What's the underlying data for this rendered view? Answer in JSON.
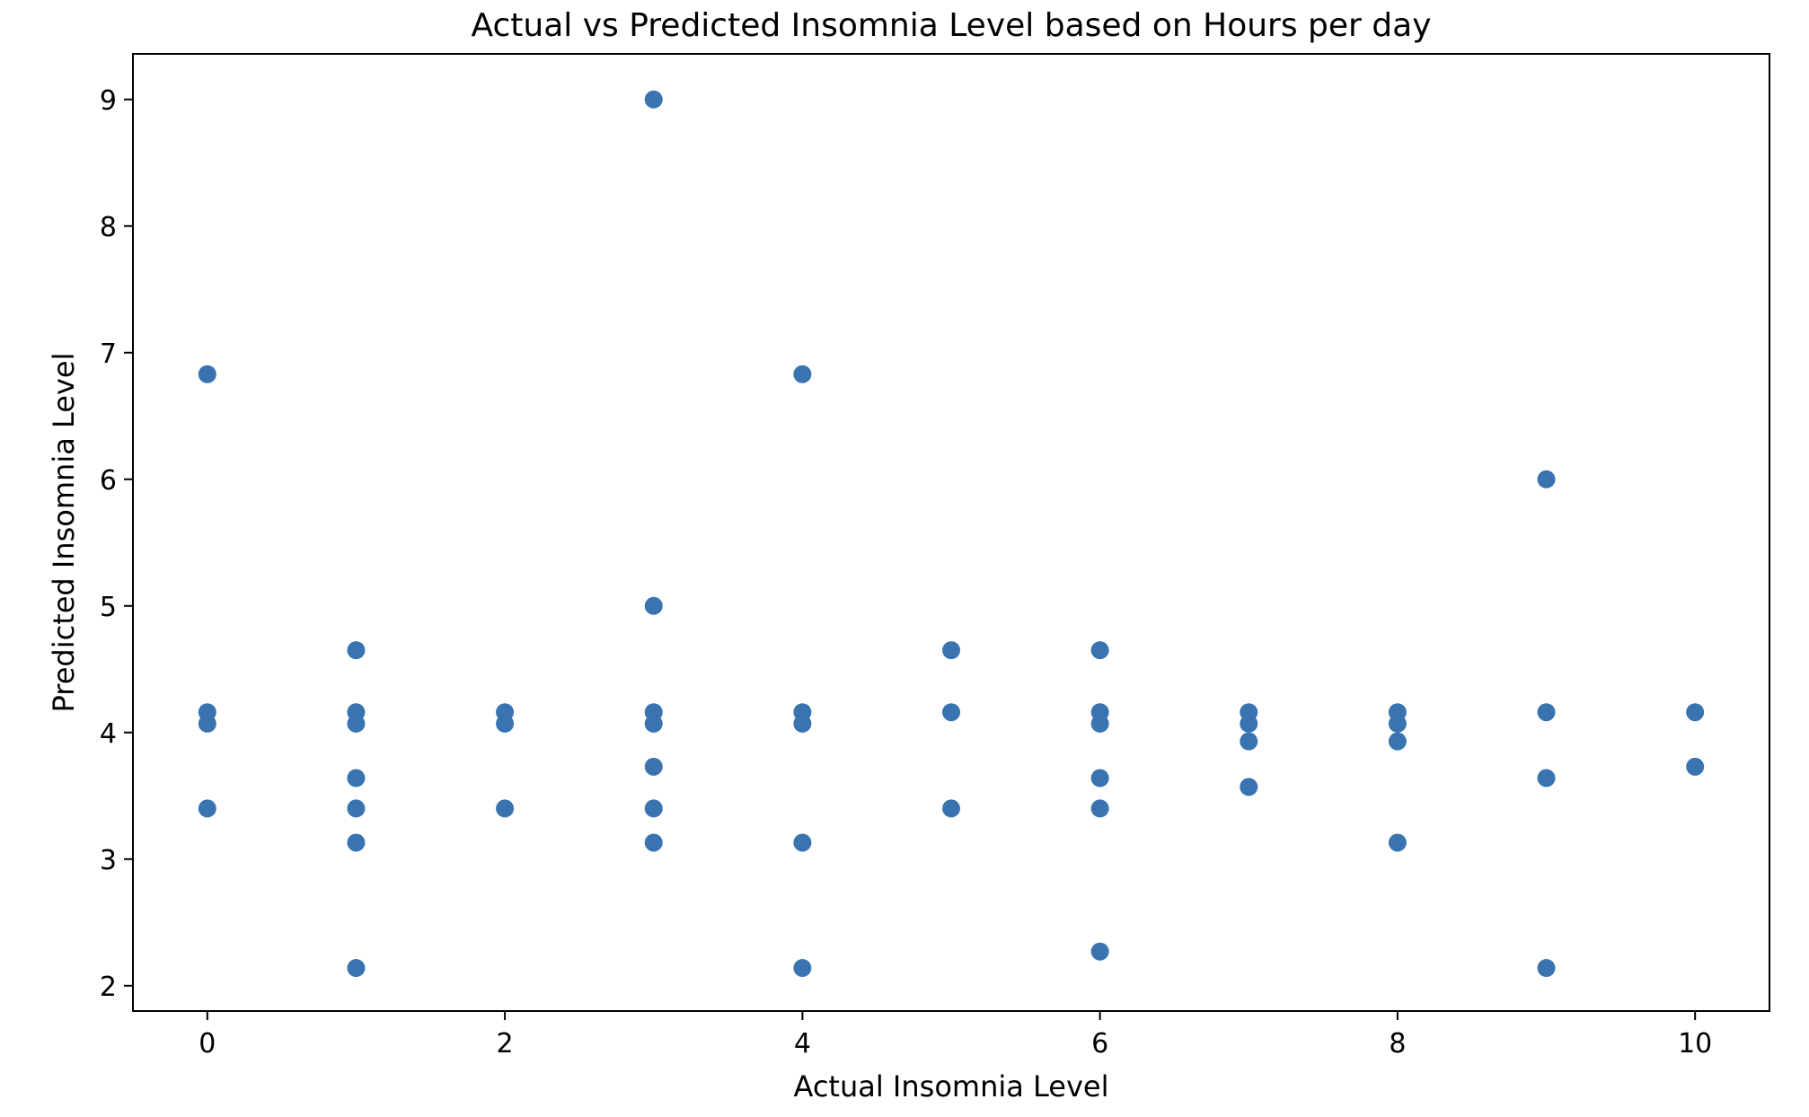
{
  "chart_data": {
    "type": "scatter",
    "title": "Actual vs Predicted Insomnia Level based on Hours per day",
    "xlabel": "Actual Insomnia Level",
    "ylabel": "Predicted Insomnia Level",
    "xlim": [
      -0.5,
      10.5
    ],
    "ylim": [
      1.8,
      9.36
    ],
    "xticks": [
      0,
      2,
      4,
      6,
      8,
      10
    ],
    "yticks": [
      2,
      3,
      4,
      5,
      6,
      7,
      8,
      9
    ],
    "grid": false,
    "marker_color": "#3a74b0",
    "points": [
      {
        "x": 0,
        "y": 6.83
      },
      {
        "x": 0,
        "y": 4.16
      },
      {
        "x": 0,
        "y": 4.07
      },
      {
        "x": 0,
        "y": 3.4
      },
      {
        "x": 1,
        "y": 4.65
      },
      {
        "x": 1,
        "y": 4.16
      },
      {
        "x": 1,
        "y": 4.07
      },
      {
        "x": 1,
        "y": 3.64
      },
      {
        "x": 1,
        "y": 3.4
      },
      {
        "x": 1,
        "y": 3.13
      },
      {
        "x": 1,
        "y": 2.14
      },
      {
        "x": 2,
        "y": 4.16
      },
      {
        "x": 2,
        "y": 4.07
      },
      {
        "x": 2,
        "y": 3.4
      },
      {
        "x": 3,
        "y": 9.0
      },
      {
        "x": 3,
        "y": 5.0
      },
      {
        "x": 3,
        "y": 4.16
      },
      {
        "x": 3,
        "y": 4.07
      },
      {
        "x": 3,
        "y": 3.73
      },
      {
        "x": 3,
        "y": 3.4
      },
      {
        "x": 3,
        "y": 3.13
      },
      {
        "x": 4,
        "y": 6.83
      },
      {
        "x": 4,
        "y": 4.16
      },
      {
        "x": 4,
        "y": 4.07
      },
      {
        "x": 4,
        "y": 3.13
      },
      {
        "x": 4,
        "y": 2.14
      },
      {
        "x": 5,
        "y": 4.65
      },
      {
        "x": 5,
        "y": 4.16
      },
      {
        "x": 5,
        "y": 3.4
      },
      {
        "x": 6,
        "y": 4.65
      },
      {
        "x": 6,
        "y": 4.16
      },
      {
        "x": 6,
        "y": 4.07
      },
      {
        "x": 6,
        "y": 3.64
      },
      {
        "x": 6,
        "y": 3.4
      },
      {
        "x": 6,
        "y": 2.27
      },
      {
        "x": 7,
        "y": 4.16
      },
      {
        "x": 7,
        "y": 4.07
      },
      {
        "x": 7,
        "y": 3.93
      },
      {
        "x": 7,
        "y": 3.57
      },
      {
        "x": 8,
        "y": 4.16
      },
      {
        "x": 8,
        "y": 4.07
      },
      {
        "x": 8,
        "y": 3.93
      },
      {
        "x": 8,
        "y": 3.13
      },
      {
        "x": 9,
        "y": 6.0
      },
      {
        "x": 9,
        "y": 4.16
      },
      {
        "x": 9,
        "y": 3.64
      },
      {
        "x": 9,
        "y": 2.14
      },
      {
        "x": 10,
        "y": 4.16
      },
      {
        "x": 10,
        "y": 3.73
      }
    ]
  }
}
